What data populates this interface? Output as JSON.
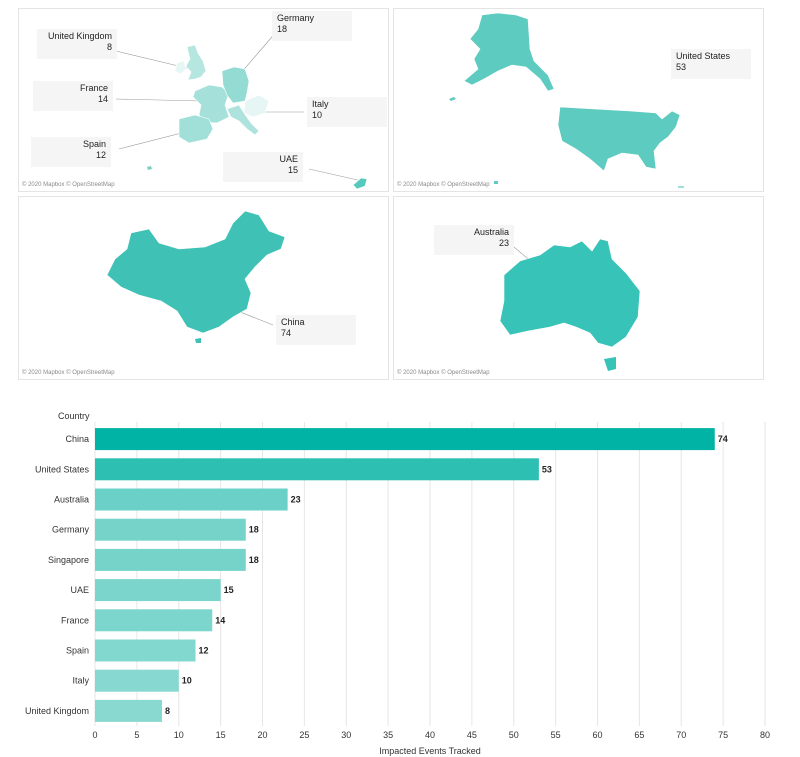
{
  "maps": {
    "credit": "© 2020 Mapbox © OpenStreetMap",
    "europe": {
      "callouts": [
        {
          "label": "United Kingdom",
          "value": "8"
        },
        {
          "label": "Germany",
          "value": "18"
        },
        {
          "label": "France",
          "value": "14"
        },
        {
          "label": "Italy",
          "value": "10"
        },
        {
          "label": "Spain",
          "value": "12"
        },
        {
          "label": "UAE",
          "value": "15"
        }
      ]
    },
    "us": {
      "callouts": [
        {
          "label": "United States",
          "value": "53"
        }
      ]
    },
    "china": {
      "callouts": [
        {
          "label": "China",
          "value": "74"
        }
      ]
    },
    "australia": {
      "callouts": [
        {
          "label": "Australia",
          "value": "23"
        }
      ]
    }
  },
  "colors": {
    "low": "#8ad9d1",
    "high": "#00b3a4",
    "grid": "#e6e6e6",
    "text": "#333333",
    "leader": "#9a9a9a"
  },
  "chart_data": {
    "type": "bar",
    "orientation": "horizontal",
    "title": "",
    "ylabel": "Country",
    "xlabel": "Impacted Events Tracked",
    "categories": [
      "China",
      "United States",
      "Australia",
      "Germany",
      "Singapore",
      "UAE",
      "France",
      "Spain",
      "Italy",
      "United Kingdom"
    ],
    "values": [
      74,
      53,
      23,
      18,
      18,
      15,
      14,
      12,
      10,
      8
    ],
    "xlim": [
      0,
      80
    ],
    "xticks": [
      0,
      5,
      10,
      15,
      20,
      25,
      30,
      35,
      40,
      45,
      50,
      55,
      60,
      65,
      70,
      75,
      80
    ],
    "grid": true,
    "color_scale": "sequential teal by value"
  }
}
